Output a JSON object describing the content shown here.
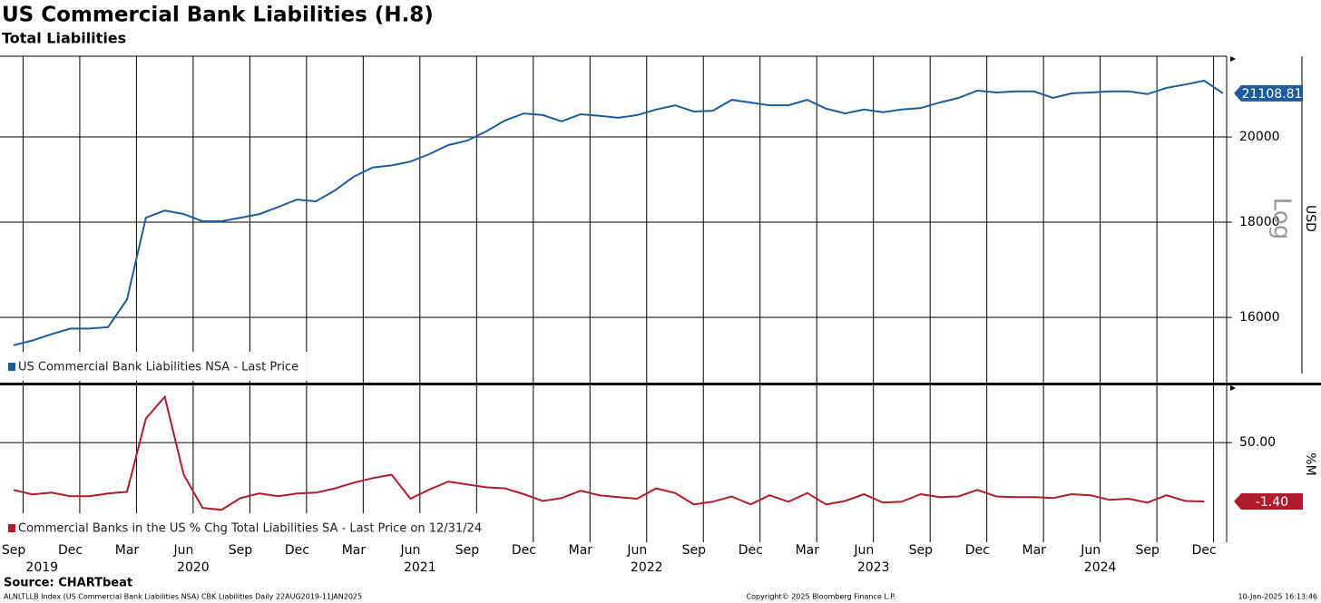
{
  "chart_data": [
    {
      "type": "line",
      "title": "US Commercial Bank Liabilities (H.8)",
      "subtitle": "Total Liabilities",
      "ylabel": "USD",
      "scale_label": "Log",
      "log_scale": true,
      "ylim": [
        14760,
        22100
      ],
      "yticks": [
        16000,
        18000,
        20000
      ],
      "grid": true,
      "xlim": [
        "2019-09",
        "2025-01"
      ],
      "x": [
        "2019-09",
        "2019-10",
        "2019-11",
        "2019-12",
        "2020-01",
        "2020-02",
        "2020-03",
        "2020-04",
        "2020-05",
        "2020-06",
        "2020-07",
        "2020-08",
        "2020-09",
        "2020-10",
        "2020-11",
        "2020-12",
        "2021-01",
        "2021-02",
        "2021-03",
        "2021-04",
        "2021-05",
        "2021-06",
        "2021-07",
        "2021-08",
        "2021-09",
        "2021-10",
        "2021-11",
        "2021-12",
        "2022-01",
        "2022-02",
        "2022-03",
        "2022-04",
        "2022-05",
        "2022-06",
        "2022-07",
        "2022-08",
        "2022-09",
        "2022-10",
        "2022-11",
        "2022-12",
        "2023-01",
        "2023-02",
        "2023-03",
        "2023-04",
        "2023-05",
        "2023-06",
        "2023-07",
        "2023-08",
        "2023-09",
        "2023-10",
        "2023-11",
        "2023-12",
        "2024-01",
        "2024-02",
        "2024-03",
        "2024-04",
        "2024-05",
        "2024-06",
        "2024-07",
        "2024-08",
        "2024-09",
        "2024-10",
        "2024-11",
        "2024-12",
        "2025-01"
      ],
      "series": [
        {
          "name": "US Commercial Bank Liabilities NSA - Last Price",
          "color": "#1f5c99",
          "values": [
            15460,
            15550,
            15670,
            15780,
            15780,
            15810,
            16360,
            18100,
            18260,
            18180,
            18020,
            18020,
            18100,
            18180,
            18340,
            18510,
            18470,
            18720,
            19040,
            19260,
            19310,
            19400,
            19580,
            19800,
            19910,
            20135,
            20410,
            20590,
            20550,
            20390,
            20570,
            20530,
            20480,
            20550,
            20690,
            20800,
            20640,
            20660,
            20940,
            20870,
            20800,
            20800,
            20940,
            20710,
            20590,
            20690,
            20620,
            20690,
            20730,
            20870,
            20990,
            21180,
            21130,
            21160,
            21160,
            20990,
            21110,
            21130,
            21160,
            21160,
            21090,
            21250,
            21340,
            21440,
            21108.81
          ]
        }
      ]
    },
    {
      "type": "line",
      "ylabel": "%M",
      "ylim": [
        -37,
        100
      ],
      "yticks": [
        {
          "value": 50,
          "label": "50.00"
        }
      ],
      "grid": true,
      "xlim": [
        "2019-09",
        "2025-01"
      ],
      "xticks": [
        {
          "value": "2019-09",
          "label": "Sep"
        },
        {
          "value": "2019-12",
          "label": "Dec"
        },
        {
          "value": "2020-03",
          "label": "Mar"
        },
        {
          "value": "2020-06",
          "label": "Jun"
        },
        {
          "value": "2020-09",
          "label": "Sep"
        },
        {
          "value": "2020-12",
          "label": "Dec"
        },
        {
          "value": "2021-03",
          "label": "Mar"
        },
        {
          "value": "2021-06",
          "label": "Jun"
        },
        {
          "value": "2021-09",
          "label": "Sep"
        },
        {
          "value": "2021-12",
          "label": "Dec"
        },
        {
          "value": "2022-03",
          "label": "Mar"
        },
        {
          "value": "2022-06",
          "label": "Jun"
        },
        {
          "value": "2022-09",
          "label": "Sep"
        },
        {
          "value": "2022-12",
          "label": "Dec"
        },
        {
          "value": "2023-03",
          "label": "Mar"
        },
        {
          "value": "2023-06",
          "label": "Jun"
        },
        {
          "value": "2023-09",
          "label": "Sep"
        },
        {
          "value": "2023-12",
          "label": "Dec"
        },
        {
          "value": "2024-03",
          "label": "Mar"
        },
        {
          "value": "2024-06",
          "label": "Jun"
        },
        {
          "value": "2024-09",
          "label": "Sep"
        },
        {
          "value": "2024-12",
          "label": "Dec"
        }
      ],
      "x_year_labels": [
        "2019",
        "2020",
        "2021",
        "2022",
        "2023",
        "2024"
      ],
      "x": [
        "2019-09",
        "2019-10",
        "2019-11",
        "2019-12",
        "2020-01",
        "2020-02",
        "2020-03",
        "2020-04",
        "2020-05",
        "2020-06",
        "2020-07",
        "2020-08",
        "2020-09",
        "2020-10",
        "2020-11",
        "2020-12",
        "2021-01",
        "2021-02",
        "2021-03",
        "2021-04",
        "2021-05",
        "2021-06",
        "2021-07",
        "2021-08",
        "2021-09",
        "2021-10",
        "2021-11",
        "2021-12",
        "2022-01",
        "2022-02",
        "2022-03",
        "2022-04",
        "2022-05",
        "2022-06",
        "2022-07",
        "2022-08",
        "2022-09",
        "2022-10",
        "2022-11",
        "2022-12",
        "2023-01",
        "2023-02",
        "2023-03",
        "2023-04",
        "2023-05",
        "2023-06",
        "2023-07",
        "2023-08",
        "2023-09",
        "2023-10",
        "2023-11",
        "2023-12",
        "2024-01",
        "2024-02",
        "2024-03",
        "2024-04",
        "2024-05",
        "2024-06",
        "2024-07",
        "2024-08",
        "2024-09",
        "2024-10",
        "2024-11",
        "2024-12"
      ],
      "series": [
        {
          "name": "Commercial Banks in the US % Chg Total Liabilities SA - Last Price on 12/31/24",
          "color": "#b01c2e",
          "values": [
            8.7,
            4.8,
            6.3,
            3.2,
            3.2,
            5.6,
            7,
            71,
            90,
            22,
            -7,
            -8.7,
            1.6,
            5.6,
            3.2,
            5.6,
            6.3,
            10,
            15,
            19,
            22,
            1,
            9,
            16,
            13.5,
            11,
            10,
            5,
            -1,
            1.6,
            8,
            4,
            2.4,
            1,
            10,
            6,
            -4,
            -1.6,
            3,
            -4,
            4,
            -1.6,
            6,
            -4,
            -1,
            5,
            -2.4,
            -1.6,
            5,
            2.4,
            3,
            8.7,
            3,
            2.4,
            2.4,
            1.6,
            5,
            4,
            0,
            1,
            -2.4,
            4,
            -1,
            -1.4
          ],
          "value_labels": [
            null,
            null,
            null,
            null,
            null,
            null,
            null,
            null,
            null,
            null,
            null,
            null,
            null,
            null,
            null,
            null,
            null,
            null,
            null,
            null,
            null,
            null,
            null,
            null,
            null,
            null,
            null,
            null,
            null,
            null,
            null,
            null,
            null,
            null,
            null,
            null,
            null,
            null,
            null,
            null,
            null,
            null,
            null,
            null,
            null,
            null,
            null,
            null,
            null,
            null,
            null,
            null,
            null,
            null,
            null,
            null,
            null,
            null,
            null,
            null,
            null,
            null,
            null,
            "-1.40"
          ]
        }
      ]
    }
  ],
  "footer": {
    "source": "Source: CHARTbeat",
    "index_line": "ALNLTLLB Index (US Commercial Bank Liabilities NSA) CBK Liabilities  Daily 22AUG2019-11JAN2025",
    "copyright": "Copyright© 2025 Bloomberg Finance L.P.",
    "timestamp": "10-Jan-2025 16:13:46"
  }
}
